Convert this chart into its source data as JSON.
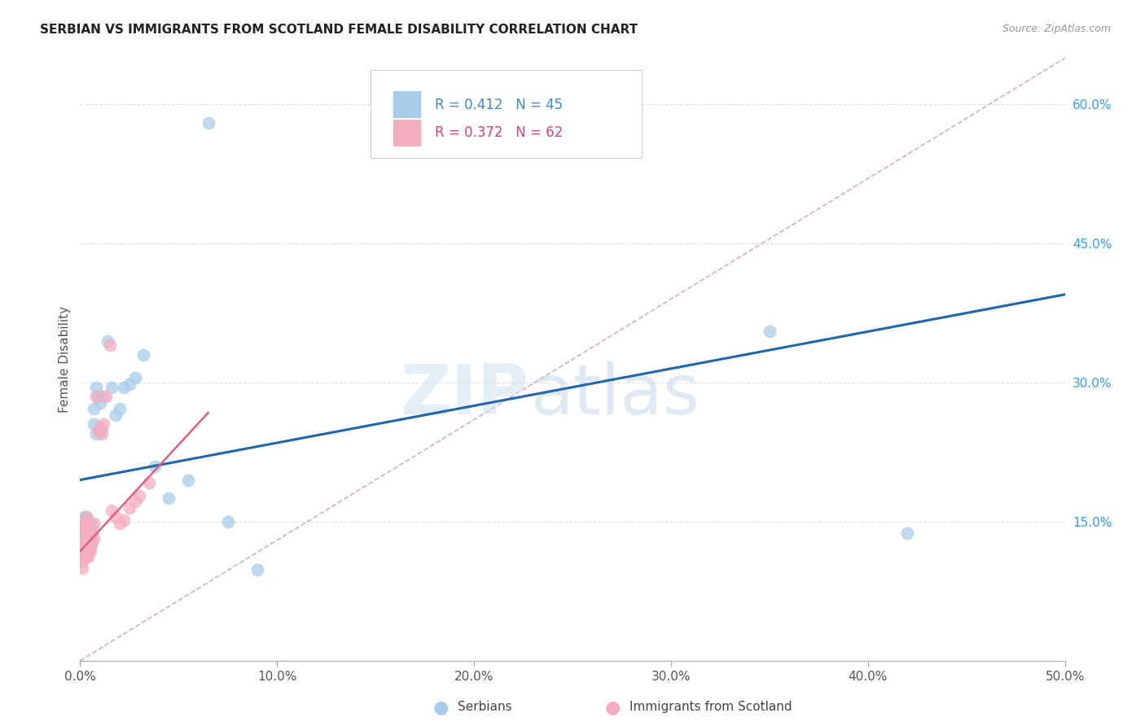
{
  "title": "SERBIAN VS IMMIGRANTS FROM SCOTLAND FEMALE DISABILITY CORRELATION CHART",
  "source": "Source: ZipAtlas.com",
  "ylabel": "Female Disability",
  "xlim": [
    0.0,
    0.5
  ],
  "ylim": [
    0.0,
    0.65
  ],
  "xticks": [
    0.0,
    0.1,
    0.2,
    0.3,
    0.4,
    0.5
  ],
  "yticks": [
    0.15,
    0.3,
    0.45,
    0.6
  ],
  "ytick_labels": [
    "15.0%",
    "30.0%",
    "45.0%",
    "60.0%"
  ],
  "xtick_labels": [
    "0.0%",
    "10.0%",
    "20.0%",
    "30.0%",
    "40.0%",
    "50.0%"
  ],
  "legend_bottom_serbians": "Serbians",
  "legend_bottom_scotland": "Immigrants from Scotland",
  "blue_R": "0.412",
  "blue_N": "45",
  "pink_R": "0.372",
  "pink_N": "62",
  "blue_scatter_color": "#a8cce8",
  "pink_scatter_color": "#f4aec0",
  "blue_line_color": "#2166ac",
  "pink_line_color": "#e06080",
  "ref_line_color": "#d0b0c0",
  "grid_color": "#e0e0e0",
  "serbians_x": [
    0.001,
    0.001,
    0.001,
    0.002,
    0.002,
    0.002,
    0.002,
    0.002,
    0.003,
    0.003,
    0.003,
    0.003,
    0.004,
    0.004,
    0.004,
    0.005,
    0.005,
    0.005,
    0.006,
    0.006,
    0.006,
    0.007,
    0.007,
    0.008,
    0.008,
    0.009,
    0.01,
    0.011,
    0.012,
    0.014,
    0.016,
    0.018,
    0.02,
    0.022,
    0.025,
    0.028,
    0.032,
    0.038,
    0.045,
    0.055,
    0.065,
    0.075,
    0.09,
    0.35,
    0.42
  ],
  "serbians_y": [
    0.13,
    0.138,
    0.145,
    0.125,
    0.132,
    0.14,
    0.148,
    0.155,
    0.128,
    0.136,
    0.145,
    0.155,
    0.13,
    0.14,
    0.15,
    0.128,
    0.138,
    0.148,
    0.128,
    0.138,
    0.145,
    0.255,
    0.272,
    0.245,
    0.295,
    0.285,
    0.278,
    0.248,
    0.285,
    0.345,
    0.295,
    0.265,
    0.272,
    0.295,
    0.298,
    0.305,
    0.33,
    0.21,
    0.175,
    0.195,
    0.58,
    0.15,
    0.098,
    0.355,
    0.138
  ],
  "scotland_x": [
    0.001,
    0.001,
    0.001,
    0.001,
    0.001,
    0.001,
    0.001,
    0.001,
    0.001,
    0.001,
    0.001,
    0.002,
    0.002,
    0.002,
    0.002,
    0.002,
    0.002,
    0.002,
    0.002,
    0.002,
    0.002,
    0.003,
    0.003,
    0.003,
    0.003,
    0.003,
    0.003,
    0.003,
    0.003,
    0.003,
    0.003,
    0.003,
    0.004,
    0.004,
    0.004,
    0.004,
    0.004,
    0.004,
    0.005,
    0.005,
    0.005,
    0.005,
    0.005,
    0.006,
    0.006,
    0.007,
    0.007,
    0.008,
    0.009,
    0.01,
    0.011,
    0.012,
    0.013,
    0.015,
    0.016,
    0.018,
    0.02,
    0.022,
    0.025,
    0.028,
    0.03,
    0.035
  ],
  "scotland_y": [
    0.1,
    0.108,
    0.112,
    0.118,
    0.122,
    0.125,
    0.128,
    0.132,
    0.135,
    0.138,
    0.142,
    0.112,
    0.118,
    0.122,
    0.125,
    0.128,
    0.132,
    0.135,
    0.138,
    0.142,
    0.148,
    0.112,
    0.118,
    0.122,
    0.128,
    0.132,
    0.135,
    0.138,
    0.142,
    0.145,
    0.148,
    0.155,
    0.112,
    0.118,
    0.125,
    0.128,
    0.132,
    0.14,
    0.118,
    0.122,
    0.128,
    0.135,
    0.145,
    0.128,
    0.14,
    0.132,
    0.148,
    0.285,
    0.248,
    0.252,
    0.245,
    0.255,
    0.285,
    0.34,
    0.162,
    0.155,
    0.148,
    0.152,
    0.165,
    0.172,
    0.178,
    0.192
  ]
}
